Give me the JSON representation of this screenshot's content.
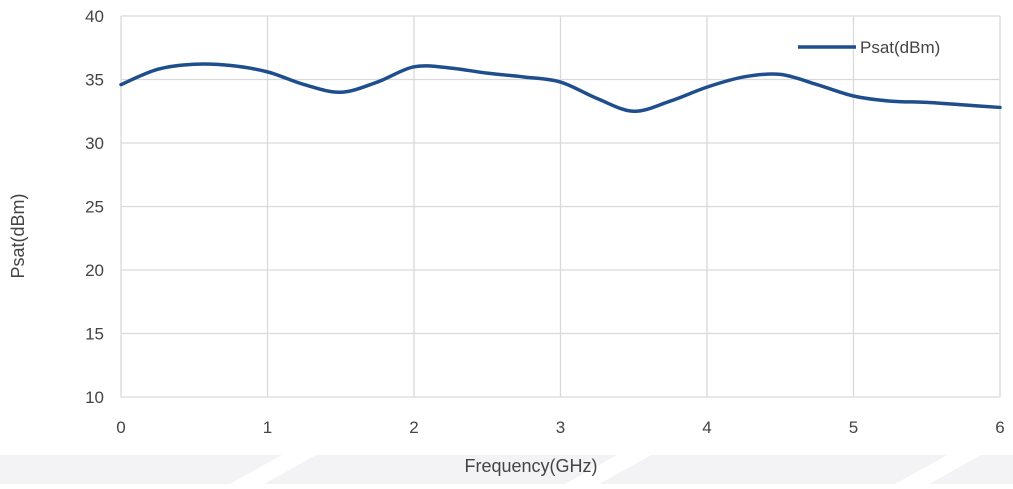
{
  "chart_data": {
    "type": "line",
    "title": "",
    "xlabel": "Frequency(GHz)",
    "ylabel": "Psat(dBm)",
    "xlim": [
      0,
      6
    ],
    "ylim": [
      10,
      40
    ],
    "x_ticks": [
      "0",
      "1",
      "2",
      "3",
      "4",
      "5",
      "6"
    ],
    "y_ticks": [
      "10",
      "15",
      "20",
      "25",
      "30",
      "35",
      "40"
    ],
    "grid": true,
    "legend_position": "top-right",
    "series": [
      {
        "name": "Psat(dBm)",
        "color": "#1f4e8c",
        "x": [
          0,
          0.25,
          0.5,
          0.75,
          1.0,
          1.25,
          1.5,
          1.75,
          2.0,
          2.25,
          2.5,
          2.75,
          3.0,
          3.25,
          3.5,
          3.75,
          4.0,
          4.25,
          4.5,
          4.75,
          5.0,
          5.25,
          5.5,
          5.75,
          6.0
        ],
        "y": [
          34.6,
          35.8,
          36.2,
          36.1,
          35.6,
          34.6,
          34.0,
          34.8,
          36.0,
          35.9,
          35.5,
          35.2,
          34.8,
          33.5,
          32.5,
          33.3,
          34.4,
          35.2,
          35.4,
          34.6,
          33.7,
          33.3,
          33.2,
          33.0,
          32.8
        ]
      }
    ]
  }
}
